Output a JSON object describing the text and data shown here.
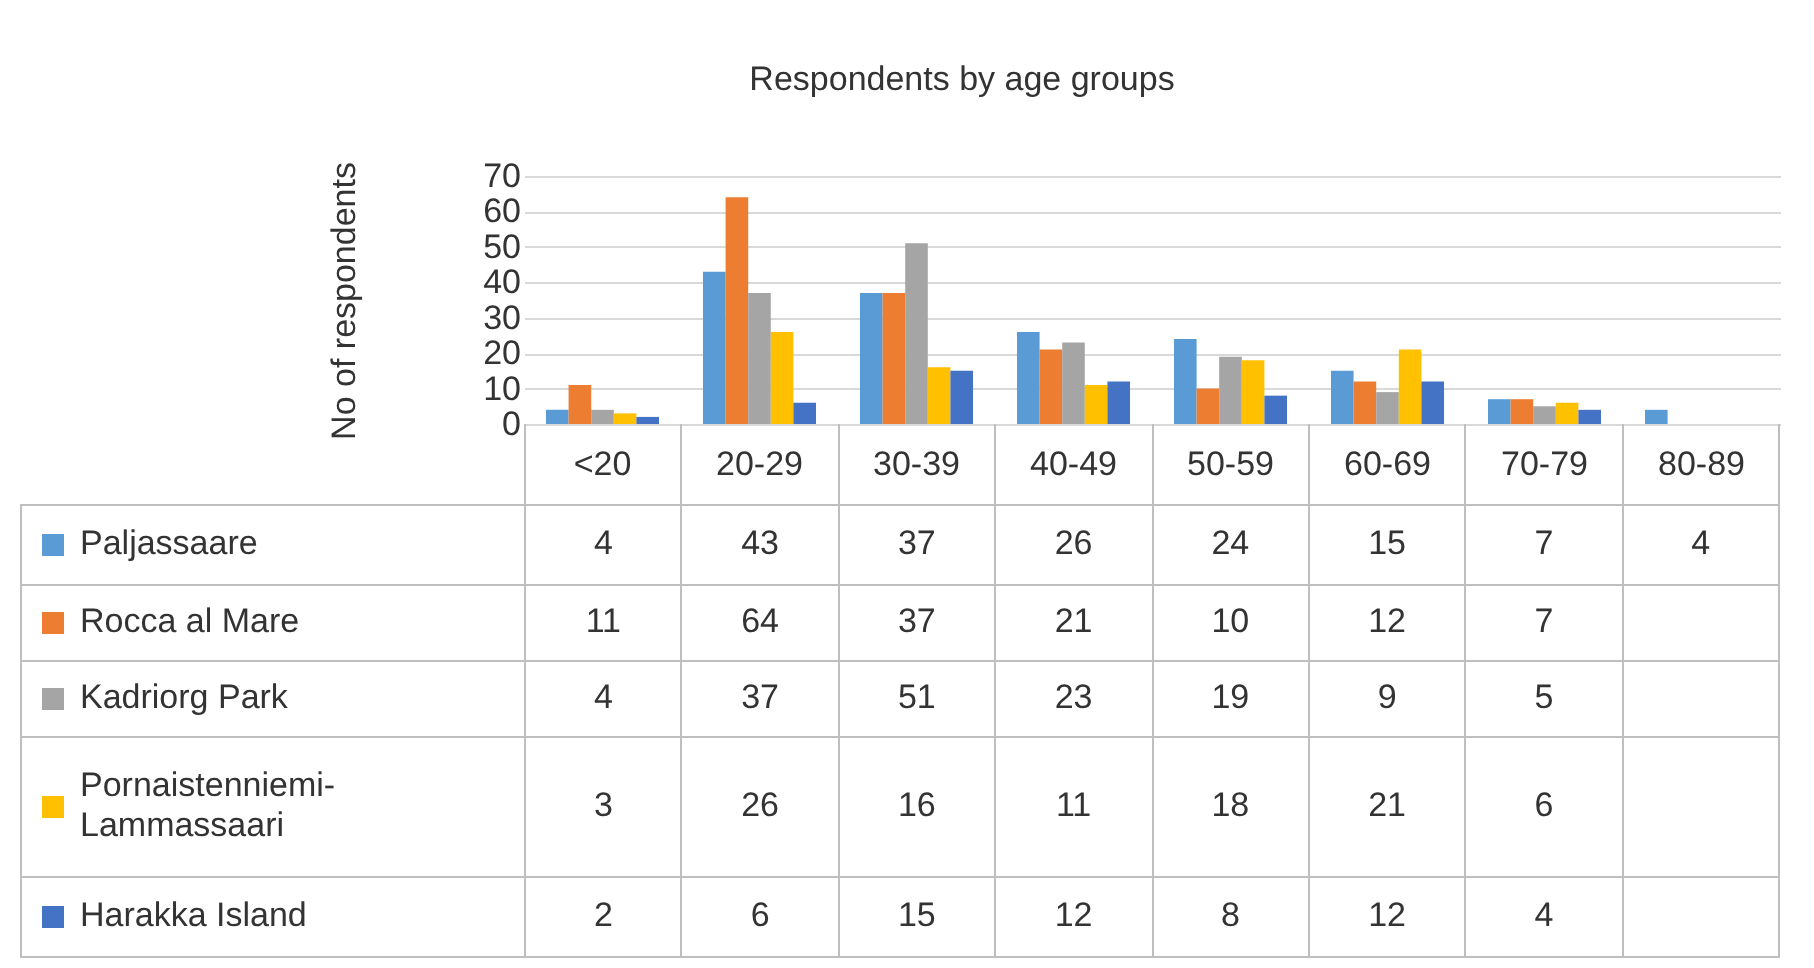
{
  "chart_data": {
    "type": "bar",
    "title": "Respondents by age groups",
    "ylabel": "No of respondents",
    "categories": [
      "<20",
      "20-29",
      "30-39",
      "40-49",
      "50-59",
      "60-69",
      "70-79",
      "80-89"
    ],
    "series": [
      {
        "name": "Paljassaare",
        "color": "#5b9bd5",
        "values": [
          4,
          43,
          37,
          26,
          24,
          15,
          7,
          4
        ]
      },
      {
        "name": "Rocca al Mare",
        "color": "#ed7d31",
        "values": [
          11,
          64,
          37,
          21,
          10,
          12,
          7,
          null
        ]
      },
      {
        "name": "Kadriorg Park",
        "color": "#a5a5a5",
        "values": [
          4,
          37,
          51,
          23,
          19,
          9,
          5,
          null
        ]
      },
      {
        "name": "Pornaistenniemi-Lammassaari",
        "color": "#ffc000",
        "values": [
          3,
          26,
          16,
          11,
          18,
          21,
          6,
          null
        ]
      },
      {
        "name": "Harakka Island",
        "color": "#4472c4",
        "values": [
          2,
          6,
          15,
          12,
          8,
          12,
          4,
          null
        ]
      }
    ],
    "ylim": [
      0,
      70
    ],
    "yticks": [
      0,
      10,
      20,
      30,
      40,
      50,
      60,
      70
    ],
    "grid": "y",
    "legend": "bottom",
    "data_labels": true
  }
}
